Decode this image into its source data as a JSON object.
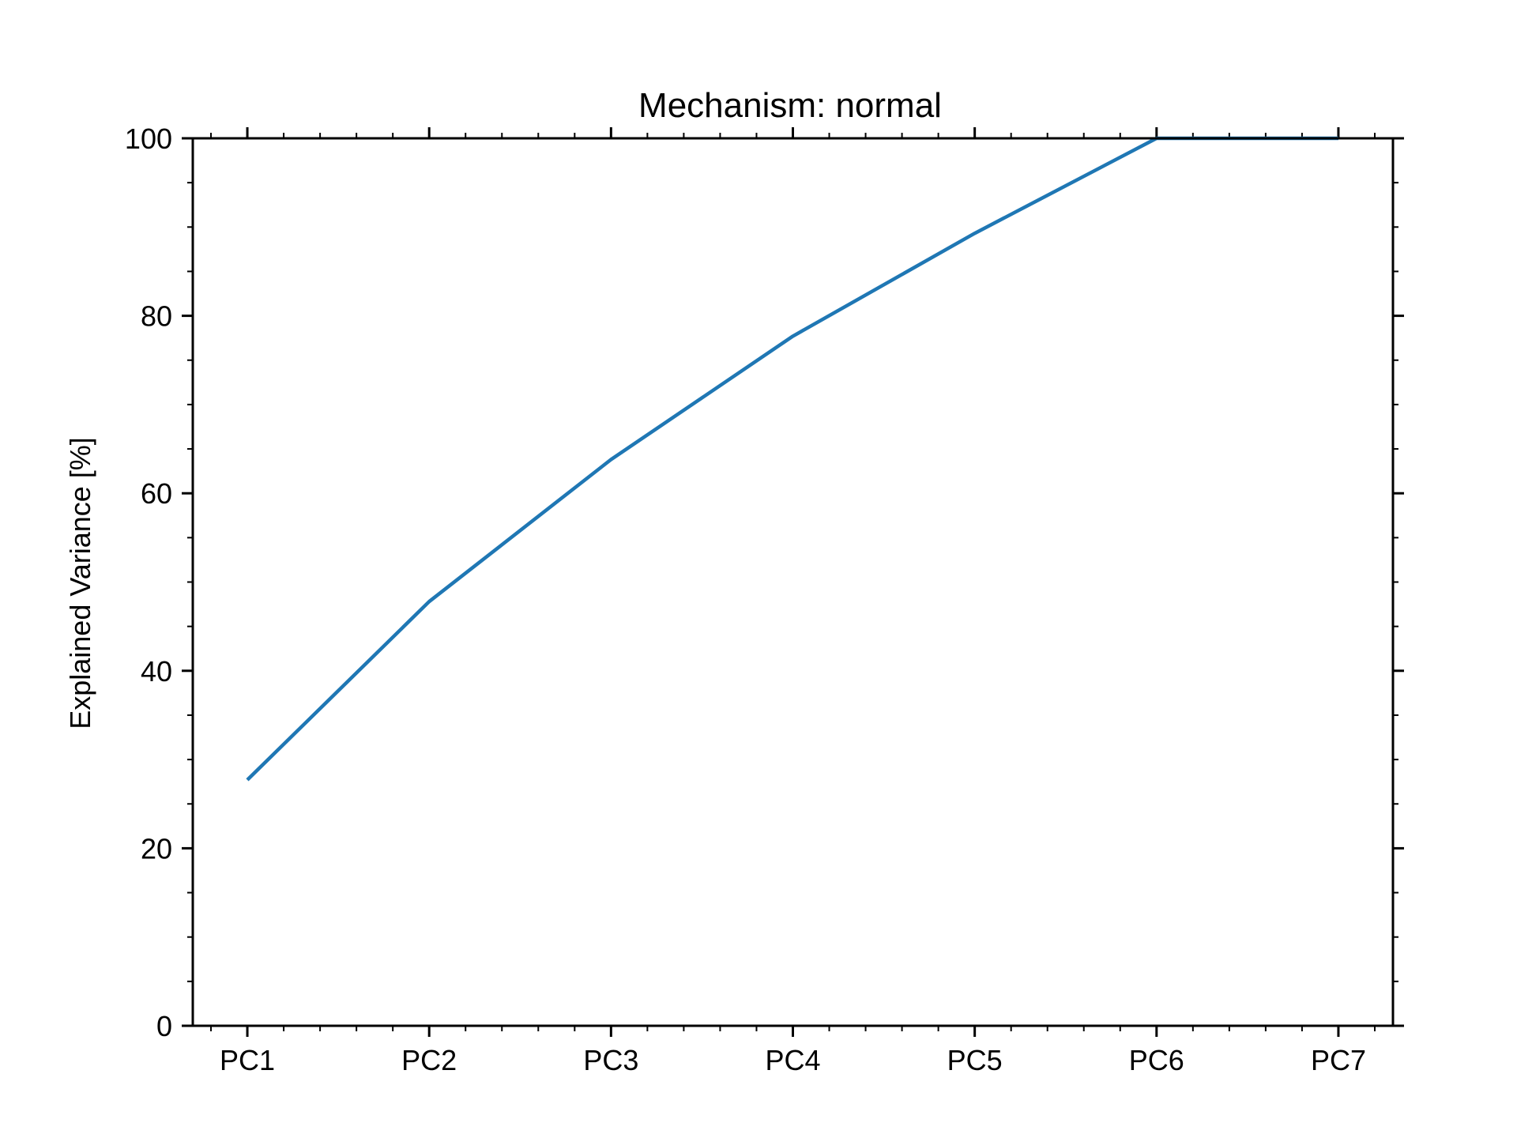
{
  "chart_data": {
    "type": "line",
    "title": "Mechanism: normal",
    "xlabel": "",
    "ylabel": "Explained Variance [%]",
    "categories": [
      "PC1",
      "PC2",
      "PC3",
      "PC4",
      "PC5",
      "PC6",
      "PC7"
    ],
    "series": [
      {
        "values": [
          27.7,
          47.8,
          63.8,
          77.7,
          89.3,
          100.0,
          100.0
        ],
        "color": "#1f77b4"
      }
    ],
    "ylim": [
      0,
      100
    ],
    "yticks": [
      0,
      20,
      40,
      60,
      80,
      100
    ],
    "grid": false,
    "legend": "none"
  }
}
